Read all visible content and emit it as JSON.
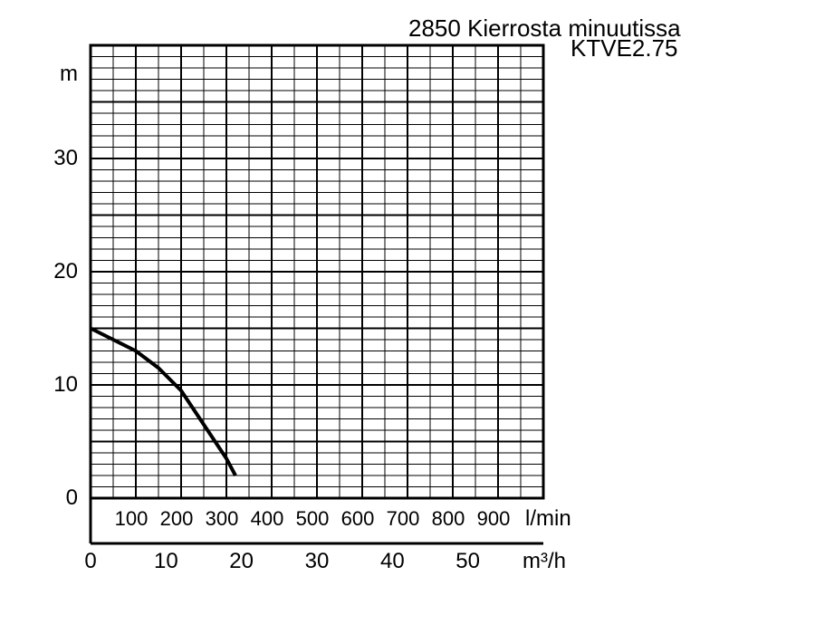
{
  "chart_data": {
    "type": "line",
    "title": "2850 Kierrosta minuutissa",
    "subtitle": "KTVE2.75",
    "ylabel": "m",
    "xlabel_lpm": "l/min",
    "xlabel_m3h": "m³/h",
    "ylim": [
      0,
      40
    ],
    "xlim_lpm": [
      0,
      1000
    ],
    "xlim_m3h": [
      0,
      60
    ],
    "grid": true,
    "y_ticks": [
      "0",
      "10",
      "20",
      "30"
    ],
    "x_ticks_lpm": [
      "100",
      "200",
      "300",
      "400",
      "500",
      "600",
      "700",
      "800",
      "900"
    ],
    "x_ticks_m3h": [
      "0",
      "10",
      "20",
      "30",
      "40",
      "50"
    ],
    "series": [
      {
        "color": "#000000",
        "x": [
          0,
          50,
          100,
          150,
          200,
          250,
          300,
          320
        ],
        "y": [
          15,
          14,
          13,
          11.5,
          9.5,
          6.5,
          3.5,
          2
        ]
      }
    ]
  }
}
